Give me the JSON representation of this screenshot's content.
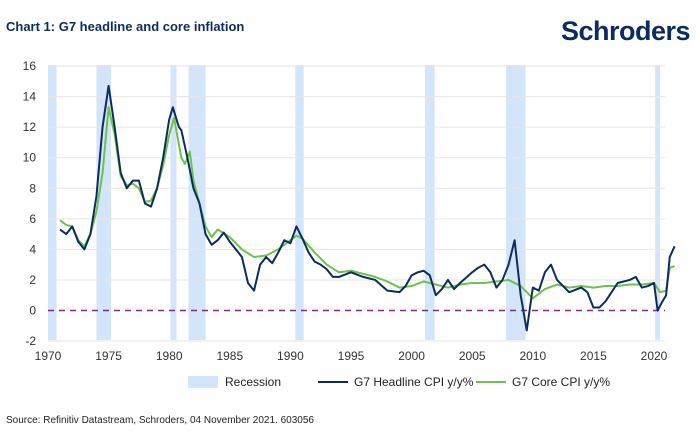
{
  "header": {
    "title": "Chart 1: G7 headline and core inflation",
    "logo": "Schroders"
  },
  "footer": {
    "source": "Source: Refinitiv Datastream, Schroders, 04 November 2021. 603056"
  },
  "colors": {
    "headline": "#0b2c5f",
    "core": "#6cc24a",
    "recession": "#d3e5fb",
    "zero_line": "#7b2d7f"
  },
  "chart_data": {
    "type": "line",
    "title": "Chart 1: G7 headline and core inflation",
    "xlabel": "",
    "ylabel": "",
    "xlim": [
      1970,
      2021.8
    ],
    "ylim": [
      -2,
      16
    ],
    "xticks": [
      "1970",
      "1975",
      "1980",
      "1985",
      "1990",
      "1995",
      "2000",
      "2005",
      "2010",
      "2015",
      "2020"
    ],
    "yticks": [
      "-2",
      "0",
      "2",
      "4",
      "6",
      "8",
      "10",
      "12",
      "14",
      "16"
    ],
    "grid": true,
    "legend": "bottom",
    "recessions": {
      "name": "Recession",
      "periods": [
        [
          1970,
          1970.7
        ],
        [
          1974,
          1975.2
        ],
        [
          1980.1,
          1980.6
        ],
        [
          1981.6,
          1983
        ],
        [
          1990.4,
          1991.1
        ],
        [
          2001.1,
          2001.9
        ],
        [
          2007.8,
          2009.4
        ],
        [
          2020.1,
          2020.5
        ]
      ]
    },
    "series": [
      {
        "name": "G7 Headline CPI y/y%",
        "points": [
          [
            1971,
            5.3
          ],
          [
            1971.5,
            5.0
          ],
          [
            1972,
            5.5
          ],
          [
            1972.5,
            4.5
          ],
          [
            1973,
            4.0
          ],
          [
            1973.5,
            5.0
          ],
          [
            1974,
            7.5
          ],
          [
            1974.5,
            12
          ],
          [
            1975,
            14.7
          ],
          [
            1975.5,
            12
          ],
          [
            1976,
            9
          ],
          [
            1976.5,
            8
          ],
          [
            1977,
            8.5
          ],
          [
            1977.5,
            8.5
          ],
          [
            1978,
            7
          ],
          [
            1978.5,
            6.8
          ],
          [
            1979,
            8
          ],
          [
            1979.5,
            10
          ],
          [
            1980,
            12.5
          ],
          [
            1980.3,
            13.3
          ],
          [
            1980.8,
            12
          ],
          [
            1981,
            11.8
          ],
          [
            1981.5,
            10
          ],
          [
            1982,
            8
          ],
          [
            1982.5,
            7
          ],
          [
            1983,
            5
          ],
          [
            1983.5,
            4.3
          ],
          [
            1984,
            4.6
          ],
          [
            1984.5,
            5.1
          ],
          [
            1985,
            4.5
          ],
          [
            1985.5,
            4
          ],
          [
            1986,
            3.5
          ],
          [
            1986.5,
            1.8
          ],
          [
            1987,
            1.3
          ],
          [
            1987.5,
            3
          ],
          [
            1988,
            3.5
          ],
          [
            1988.5,
            3.1
          ],
          [
            1989,
            3.8
          ],
          [
            1989.5,
            4.6
          ],
          [
            1990,
            4.4
          ],
          [
            1990.5,
            5.5
          ],
          [
            1991,
            4.7
          ],
          [
            1991.5,
            3.8
          ],
          [
            1992,
            3.2
          ],
          [
            1992.5,
            3
          ],
          [
            1993,
            2.7
          ],
          [
            1993.5,
            2.2
          ],
          [
            1994,
            2.2
          ],
          [
            1995,
            2.5
          ],
          [
            1996,
            2.2
          ],
          [
            1997,
            2.0
          ],
          [
            1998,
            1.3
          ],
          [
            1999,
            1.2
          ],
          [
            1999.5,
            1.6
          ],
          [
            2000,
            2.3
          ],
          [
            2000.5,
            2.5
          ],
          [
            2001,
            2.6
          ],
          [
            2001.5,
            2.3
          ],
          [
            2002,
            1.0
          ],
          [
            2002.5,
            1.4
          ],
          [
            2003,
            2.0
          ],
          [
            2003.5,
            1.4
          ],
          [
            2004,
            1.8
          ],
          [
            2005,
            2.5
          ],
          [
            2005.5,
            2.8
          ],
          [
            2006,
            3.0
          ],
          [
            2006.5,
            2.5
          ],
          [
            2007,
            1.5
          ],
          [
            2007.5,
            2.0
          ],
          [
            2008,
            3.0
          ],
          [
            2008.5,
            4.6
          ],
          [
            2009,
            1.0
          ],
          [
            2009.5,
            -1.3
          ],
          [
            2010,
            1.5
          ],
          [
            2010.5,
            1.3
          ],
          [
            2011,
            2.5
          ],
          [
            2011.5,
            3.0
          ],
          [
            2012,
            2.0
          ],
          [
            2013,
            1.2
          ],
          [
            2014,
            1.5
          ],
          [
            2014.5,
            1.2
          ],
          [
            2015,
            0.2
          ],
          [
            2015.5,
            0.2
          ],
          [
            2016,
            0.6
          ],
          [
            2017,
            1.8
          ],
          [
            2018,
            2.0
          ],
          [
            2018.5,
            2.2
          ],
          [
            2019,
            1.5
          ],
          [
            2019.5,
            1.6
          ],
          [
            2020,
            1.8
          ],
          [
            2020.3,
            0.0
          ],
          [
            2020.7,
            0.6
          ],
          [
            2021,
            1.0
          ],
          [
            2021.3,
            3.5
          ],
          [
            2021.7,
            4.2
          ]
        ]
      },
      {
        "name": "G7 Core CPI y/y%",
        "points": [
          [
            1971,
            5.9
          ],
          [
            1971.5,
            5.6
          ],
          [
            1972,
            5.5
          ],
          [
            1972.5,
            4.6
          ],
          [
            1973,
            4.2
          ],
          [
            1973.5,
            5
          ],
          [
            1974,
            6.5
          ],
          [
            1974.5,
            9
          ],
          [
            1975,
            13.3
          ],
          [
            1975.5,
            11.5
          ],
          [
            1976,
            8.8
          ],
          [
            1976.5,
            8.2
          ],
          [
            1977,
            8.3
          ],
          [
            1977.5,
            8.0
          ],
          [
            1978,
            7.1
          ],
          [
            1978.5,
            7.2
          ],
          [
            1979,
            8
          ],
          [
            1979.5,
            9.5
          ],
          [
            1980,
            11.5
          ],
          [
            1980.4,
            12.6
          ],
          [
            1981,
            10
          ],
          [
            1981.3,
            9.6
          ],
          [
            1981.7,
            10.4
          ],
          [
            1982,
            8.5
          ],
          [
            1983,
            5.5
          ],
          [
            1983.5,
            4.8
          ],
          [
            1984,
            5.3
          ],
          [
            1985,
            4.8
          ],
          [
            1986,
            4.0
          ],
          [
            1987,
            3.5
          ],
          [
            1988,
            3.6
          ],
          [
            1989,
            4
          ],
          [
            1990,
            4.6
          ],
          [
            1990.5,
            4.9
          ],
          [
            1991,
            4.7
          ],
          [
            1992,
            3.8
          ],
          [
            1993,
            3.0
          ],
          [
            1994,
            2.5
          ],
          [
            1995,
            2.6
          ],
          [
            1996,
            2.4
          ],
          [
            1997,
            2.2
          ],
          [
            1998,
            1.9
          ],
          [
            1999,
            1.5
          ],
          [
            2000,
            1.6
          ],
          [
            2001,
            1.9
          ],
          [
            2002,
            1.7
          ],
          [
            2003,
            1.5
          ],
          [
            2004,
            1.7
          ],
          [
            2005,
            1.8
          ],
          [
            2006,
            1.8
          ],
          [
            2007,
            1.9
          ],
          [
            2008,
            2.0
          ],
          [
            2009,
            1.6
          ],
          [
            2010,
            0.8
          ],
          [
            2011,
            1.4
          ],
          [
            2012,
            1.7
          ],
          [
            2013,
            1.5
          ],
          [
            2014,
            1.6
          ],
          [
            2015,
            1.5
          ],
          [
            2016,
            1.6
          ],
          [
            2017,
            1.6
          ],
          [
            2018,
            1.7
          ],
          [
            2019,
            1.7
          ],
          [
            2020,
            1.8
          ],
          [
            2020.5,
            1.2
          ],
          [
            2021,
            1.3
          ],
          [
            2021.3,
            2.8
          ],
          [
            2021.7,
            2.9
          ]
        ]
      }
    ]
  }
}
